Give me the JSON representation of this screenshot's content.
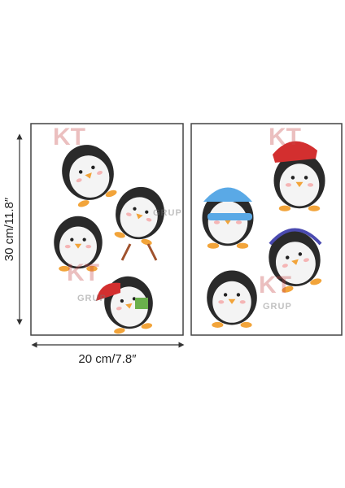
{
  "dimensions": {
    "height": "30 cm/11.8″",
    "width": "20 cm/7.8″"
  },
  "watermark": {
    "logo": "KT",
    "text": "GRUP"
  }
}
